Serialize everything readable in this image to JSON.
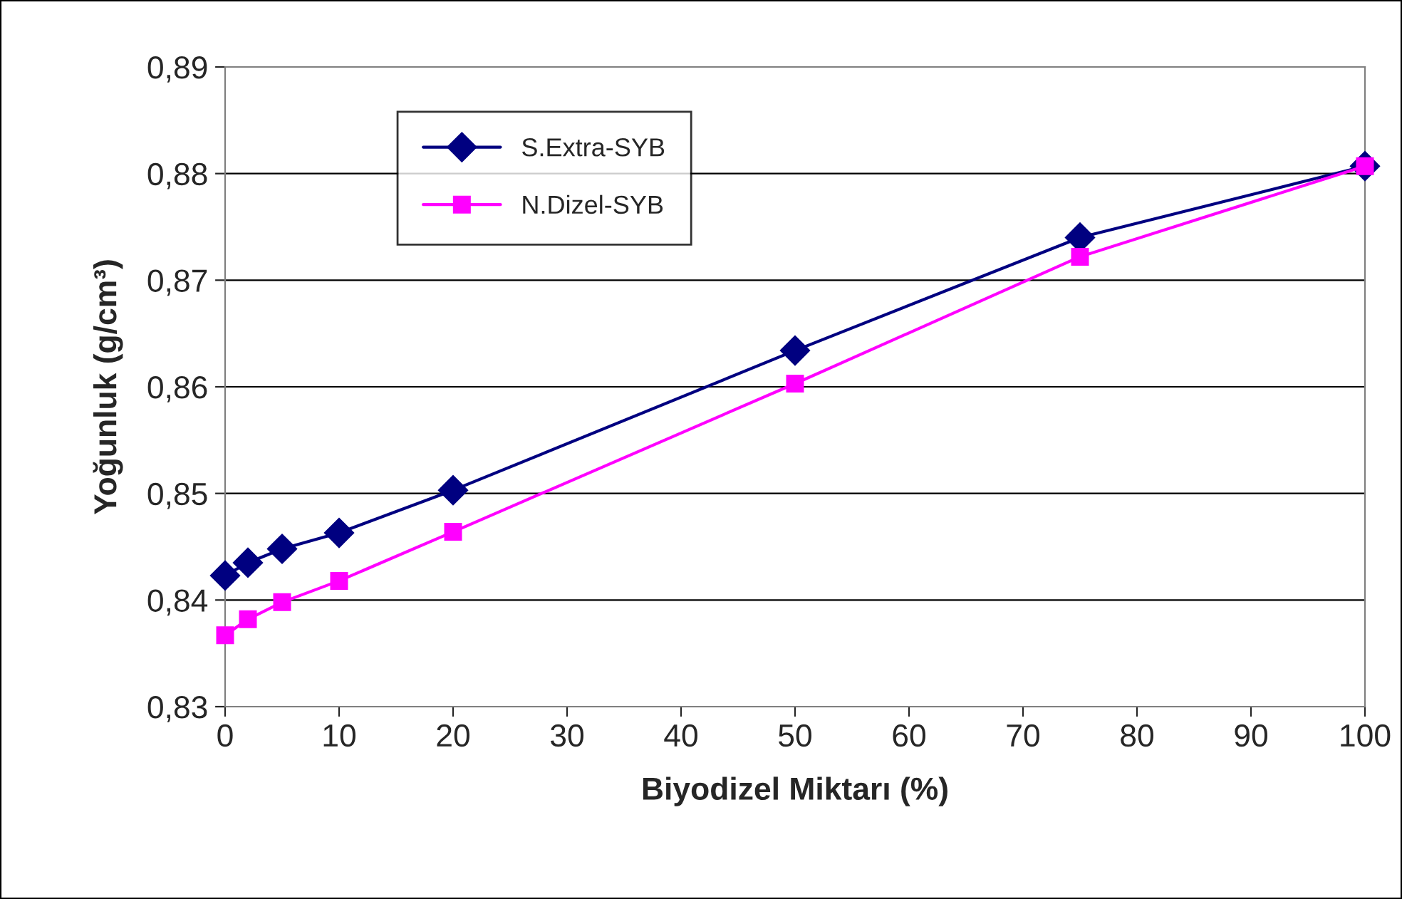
{
  "chart_data": {
    "type": "line",
    "xlabel": "Biyodizel Miktarı (%)",
    "ylabel": "Yoğunluk (g/cm³)",
    "x": [
      0,
      2,
      5,
      10,
      20,
      50,
      75,
      100
    ],
    "series": [
      {
        "name": "S.Extra-SYB",
        "color": "#000080",
        "marker": "diamond",
        "values": [
          0.8423,
          0.8435,
          0.8448,
          0.8463,
          0.8503,
          0.8634,
          0.874,
          0.8807
        ]
      },
      {
        "name": "N.Dizel-SYB",
        "color": "#ff00ff",
        "marker": "square",
        "values": [
          0.8367,
          0.8382,
          0.8398,
          0.8418,
          0.8464,
          0.8603,
          0.8722,
          0.8807
        ]
      }
    ],
    "xlim": [
      0,
      100
    ],
    "xticks": [
      0,
      10,
      20,
      30,
      40,
      50,
      60,
      70,
      80,
      90,
      100
    ],
    "ylim": [
      0.83,
      0.89
    ],
    "yticks": [
      {
        "value": 0.83,
        "label": "0,83"
      },
      {
        "value": 0.84,
        "label": "0,84"
      },
      {
        "value": 0.85,
        "label": "0,85"
      },
      {
        "value": 0.86,
        "label": "0,86"
      },
      {
        "value": 0.87,
        "label": "0,87"
      },
      {
        "value": 0.88,
        "label": "0,88"
      },
      {
        "value": 0.89,
        "label": "0,89"
      }
    ],
    "grid": "y",
    "legend": "top left",
    "line_style": "solid"
  }
}
